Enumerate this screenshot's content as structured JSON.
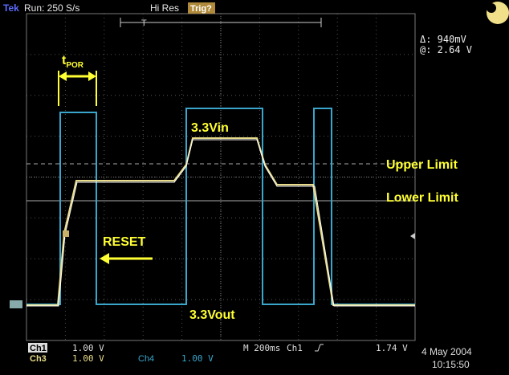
{
  "header": {
    "brand": "Tek",
    "run": "Run: 250 S/s",
    "mode": "Hi Res",
    "trigger_status": "Trig?",
    "trigger_marker": "T"
  },
  "cursor_readout": {
    "delta": "Δ: 940mV",
    "at": "@: 2.64 V"
  },
  "annotations": {
    "tpor": {
      "main": "t",
      "sub": "POR"
    },
    "vin": "3.3Vin",
    "upper": "Upper Limit",
    "lower": "Lower Limit",
    "reset": "RESET",
    "vout": "3.3Vout"
  },
  "footer": {
    "ch1": "Ch1",
    "ch1_scale": "1.00 V",
    "ch3": "Ch3",
    "ch3_scale": "1.00 V",
    "ch4": "Ch4",
    "ch4_scale": "1.00 V",
    "timebase": "M 200ms",
    "trig_source": "Ch1",
    "trig_level": "1.74 V",
    "date": "4 May 2004",
    "time": "10:15:50"
  }
}
